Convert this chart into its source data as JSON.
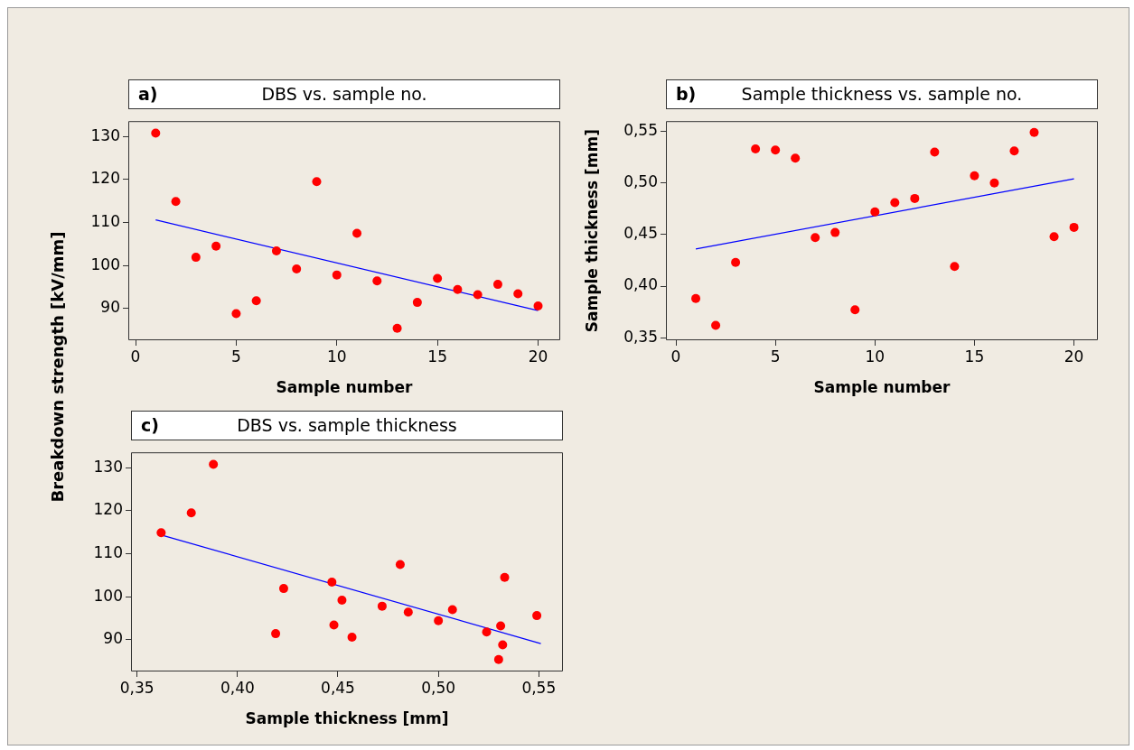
{
  "chart_data": [
    {
      "type": "scatter",
      "title": "DBS vs. sample no.",
      "annotations": [
        "a)"
      ],
      "xlabel": "Sample number",
      "ylabel": "Breakdown strength [kV/mm]",
      "xlim": [
        -0.36,
        21.1
      ],
      "ylim": [
        82.6,
        133.6
      ],
      "xticks": [
        0,
        5,
        10,
        15,
        20
      ],
      "yticks": [
        90,
        100,
        110,
        120,
        130
      ],
      "grid": false,
      "legend": false,
      "series": [
        {
          "marker": "circle",
          "color": "#ff0000",
          "x": [
            1,
            2,
            3,
            4,
            5,
            6,
            7,
            8,
            9,
            10,
            11,
            12,
            13,
            14,
            15,
            16,
            17,
            18,
            19,
            20
          ],
          "values": [
            130.8,
            114.9,
            101.9,
            104.5,
            88.8,
            91.8,
            103.4,
            99.2,
            119.5,
            97.8,
            107.5,
            96.4,
            85.4,
            91.4,
            97.0,
            94.4,
            93.2,
            95.6,
            93.4,
            90.6
          ]
        },
        {
          "type": "line",
          "marker": "none",
          "color": "#0000ff",
          "x": [
            1,
            20
          ],
          "values": [
            110.6,
            89.5
          ]
        }
      ]
    },
    {
      "type": "scatter",
      "title": "Sample thickness vs. sample no.",
      "annotations": [
        "b)"
      ],
      "xlabel": "Sample number",
      "ylabel": "Sample thickness [mm]",
      "xlim": [
        -0.5,
        21.2
      ],
      "ylim": [
        0.3475,
        0.56
      ],
      "xticks": [
        0,
        5,
        10,
        15,
        20
      ],
      "yticks": [
        {
          "value": 0.35,
          "label": "0,35"
        },
        {
          "value": 0.4,
          "label": "0,40"
        },
        {
          "value": 0.45,
          "label": "0,45"
        },
        {
          "value": 0.5,
          "label": "0,50"
        },
        {
          "value": 0.55,
          "label": "0,55"
        }
      ],
      "grid": false,
      "legend": false,
      "series": [
        {
          "marker": "circle",
          "color": "#ff0000",
          "x": [
            1,
            2,
            3,
            4,
            5,
            6,
            7,
            8,
            9,
            10,
            11,
            12,
            13,
            14,
            15,
            16,
            17,
            18,
            19,
            20
          ],
          "values": [
            0.388,
            0.362,
            0.423,
            0.533,
            0.532,
            0.524,
            0.447,
            0.452,
            0.377,
            0.472,
            0.481,
            0.485,
            0.53,
            0.419,
            0.507,
            0.5,
            0.531,
            0.549,
            0.448,
            0.457
          ]
        },
        {
          "type": "line",
          "marker": "none",
          "color": "#0000ff",
          "x": [
            1,
            20
          ],
          "values": [
            0.436,
            0.504
          ]
        }
      ]
    },
    {
      "type": "scatter",
      "title": "DBS vs. sample thickness",
      "annotations": [
        "c)"
      ],
      "xlabel": "Sample thickness [mm]",
      "xlim": [
        0.347,
        0.562
      ],
      "ylim": [
        82.6,
        133.6
      ],
      "xticks": [
        {
          "value": 0.35,
          "label": "0,35"
        },
        {
          "value": 0.4,
          "label": "0,40"
        },
        {
          "value": 0.45,
          "label": "0,45"
        },
        {
          "value": 0.5,
          "label": "0,50"
        },
        {
          "value": 0.55,
          "label": "0,55"
        }
      ],
      "yticks": [
        90,
        100,
        110,
        120,
        130
      ],
      "grid": false,
      "legend": false,
      "series": [
        {
          "marker": "circle",
          "color": "#ff0000",
          "x": [
            0.388,
            0.362,
            0.423,
            0.533,
            0.532,
            0.524,
            0.447,
            0.452,
            0.377,
            0.472,
            0.481,
            0.485,
            0.53,
            0.419,
            0.507,
            0.5,
            0.531,
            0.549,
            0.448,
            0.457
          ],
          "values": [
            130.8,
            114.9,
            101.9,
            104.5,
            88.8,
            91.8,
            103.4,
            99.2,
            119.5,
            97.8,
            107.5,
            96.4,
            85.4,
            91.4,
            97.0,
            94.4,
            93.2,
            95.6,
            93.4,
            90.6
          ]
        },
        {
          "type": "line",
          "marker": "none",
          "color": "#0000ff",
          "x": [
            0.361,
            0.551
          ],
          "values": [
            114.5,
            89.1
          ]
        }
      ]
    }
  ]
}
